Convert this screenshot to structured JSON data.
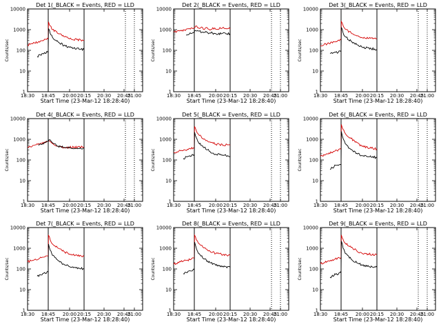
{
  "chart_data": [
    {
      "type": "line",
      "title": "Det 1(_BLACK = Events, RED = LLD",
      "xlabel": "Start Time (23-Mar-12 18:28:40)",
      "ylabel": "Counts/sec",
      "y_scale": "log",
      "ylim": [
        1,
        10000
      ],
      "xlim": [
        "18:30",
        "21:15"
      ],
      "x_ticks": [
        "18:30",
        "18:45",
        "20:00",
        "20:15",
        "20:30",
        "20:45",
        "21:00"
      ],
      "y_ticks": [
        "1",
        "10",
        "100",
        "1000",
        "10000"
      ],
      "grid": false,
      "solid_markers": [
        "18:45",
        "20:15"
      ],
      "dotted_markers": [
        "20:47",
        "21:00"
      ],
      "series": [
        {
          "color": "#d40000",
          "x": [
            "18:30",
            "18:35",
            "18:40",
            "18:45",
            "18:46",
            "18:52",
            "19:00",
            "19:20",
            "19:40",
            "20:00",
            "20:15"
          ],
          "values": [
            180,
            230,
            290,
            350,
            2400,
            1500,
            1000,
            650,
            460,
            360,
            300
          ]
        },
        {
          "color": "#000000",
          "x": [
            "18:37",
            "18:41",
            "18:43",
            "18:44",
            "18:45",
            "18:46",
            "18:52",
            "19:00",
            "19:20",
            "19:40",
            "20:00",
            "20:15"
          ],
          "values": [
            50,
            70,
            70,
            90,
            90,
            1100,
            650,
            420,
            250,
            170,
            140,
            110
          ]
        }
      ]
    },
    {
      "type": "line",
      "title": "Det 2(_BLACK = Events, RED = LLD",
      "xlabel": "Start Time (23-Mar-12 18:28:40)",
      "ylabel": "Counts/sec",
      "y_scale": "log",
      "ylim": [
        1,
        10000
      ],
      "xlim": [
        "18:30",
        "21:15"
      ],
      "x_ticks": [
        "18:30",
        "18:45",
        "20:00",
        "20:15",
        "20:30",
        "20:45",
        "21:00"
      ],
      "y_ticks": [
        "1",
        "10",
        "100",
        "1000",
        "10000"
      ],
      "grid": false,
      "solid_markers": [
        "18:45",
        "20:15"
      ],
      "dotted_markers": [
        "20:47",
        "21:00"
      ],
      "series": [
        {
          "color": "#d40000",
          "x": [
            "18:30",
            "18:38",
            "18:45",
            "18:50",
            "19:00",
            "19:10",
            "19:20",
            "19:30",
            "19:40",
            "19:50",
            "20:00",
            "20:08",
            "20:15"
          ],
          "values": [
            750,
            950,
            1250,
            1500,
            1200,
            1350,
            1000,
            1250,
            950,
            1250,
            1050,
            1300,
            1100
          ]
        },
        {
          "color": "#000000",
          "x": [
            "18:39",
            "18:42",
            "18:45",
            "18:50",
            "19:00",
            "19:20",
            "19:40",
            "20:00",
            "20:15"
          ],
          "values": [
            550,
            700,
            800,
            900,
            850,
            750,
            700,
            650,
            640
          ]
        }
      ]
    },
    {
      "type": "line",
      "title": "Det 3(_BLACK = Events, RED = LLD",
      "xlabel": "Start Time (23-Mar-12 18:28:40)",
      "ylabel": "Counts/sec",
      "y_scale": "log",
      "ylim": [
        1,
        10000
      ],
      "xlim": [
        "18:30",
        "21:15"
      ],
      "x_ticks": [
        "18:30",
        "18:45",
        "20:00",
        "20:15",
        "20:30",
        "20:45",
        "21:00"
      ],
      "y_ticks": [
        "1",
        "10",
        "100",
        "1000",
        "10000"
      ],
      "grid": false,
      "solid_markers": [
        "18:45",
        "20:15"
      ],
      "dotted_markers": [
        "20:47",
        "21:00"
      ],
      "series": [
        {
          "color": "#d40000",
          "x": [
            "18:30",
            "18:35",
            "18:40",
            "18:45",
            "18:46",
            "18:52",
            "19:00",
            "19:20",
            "19:40",
            "20:00",
            "20:15"
          ],
          "values": [
            170,
            210,
            260,
            320,
            2500,
            1600,
            1050,
            700,
            500,
            400,
            370
          ]
        },
        {
          "color": "#000000",
          "x": [
            "18:37",
            "18:41",
            "18:43",
            "18:44",
            "18:45",
            "18:46",
            "18:52",
            "19:00",
            "19:20",
            "19:40",
            "20:00",
            "20:15"
          ],
          "values": [
            70,
            80,
            80,
            95,
            95,
            1300,
            700,
            450,
            280,
            190,
            140,
            110
          ]
        }
      ]
    },
    {
      "type": "line",
      "title": "Det 4(_BLACK = Events, RED = LLD",
      "xlabel": "Start Time (23-Mar-12 18:28:40)",
      "ylabel": "Counts/sec",
      "y_scale": "log",
      "ylim": [
        1,
        10000
      ],
      "xlim": [
        "18:30",
        "21:15"
      ],
      "x_ticks": [
        "18:30",
        "18:45",
        "20:00",
        "20:15",
        "20:30",
        "20:45",
        "21:00"
      ],
      "y_ticks": [
        "1",
        "10",
        "100",
        "1000",
        "10000"
      ],
      "grid": false,
      "solid_markers": [
        "18:45",
        "20:15"
      ],
      "dotted_markers": [
        "20:47",
        "21:00"
      ],
      "series": [
        {
          "color": "#d40000",
          "x": [
            "18:30",
            "18:35",
            "18:40",
            "18:45",
            "18:48",
            "18:55",
            "19:05",
            "19:20",
            "19:40",
            "20:00",
            "20:15"
          ],
          "values": [
            420,
            520,
            650,
            800,
            850,
            720,
            560,
            450,
            400,
            410,
            420
          ]
        },
        {
          "color": "#000000",
          "x": [
            "18:38",
            "18:41",
            "18:45",
            "18:48",
            "18:55",
            "19:05",
            "19:20",
            "19:40",
            "20:00",
            "20:15"
          ],
          "values": [
            500,
            620,
            780,
            950,
            820,
            620,
            470,
            400,
            380,
            380
          ]
        }
      ]
    },
    {
      "type": "line",
      "title": "Det 5(_BLACK = Events, RED = LLD",
      "xlabel": "Start Time (23-Mar-12 18:28:40)",
      "ylabel": "Counts/sec",
      "y_scale": "log",
      "ylim": [
        1,
        10000
      ],
      "xlim": [
        "18:30",
        "21:15"
      ],
      "x_ticks": [
        "18:30",
        "18:45",
        "20:00",
        "20:15",
        "20:30",
        "20:45",
        "21:00"
      ],
      "y_ticks": [
        "1",
        "10",
        "100",
        "1000",
        "10000"
      ],
      "grid": false,
      "solid_markers": [
        "18:45",
        "20:15"
      ],
      "dotted_markers": [
        "20:47",
        "21:00"
      ],
      "series": [
        {
          "color": "#d40000",
          "x": [
            "18:30",
            "18:35",
            "18:40",
            "18:45",
            "18:46",
            "18:52",
            "19:00",
            "19:20",
            "19:40",
            "20:00",
            "20:15"
          ],
          "values": [
            230,
            280,
            330,
            380,
            4200,
            2600,
            1700,
            1050,
            750,
            580,
            520
          ]
        },
        {
          "color": "#000000",
          "x": [
            "18:37",
            "18:41",
            "18:43",
            "18:44",
            "18:45",
            "18:46",
            "18:52",
            "19:00",
            "19:20",
            "19:40",
            "20:00",
            "20:15"
          ],
          "values": [
            120,
            150,
            160,
            180,
            180,
            2200,
            1200,
            700,
            400,
            260,
            190,
            150
          ]
        }
      ]
    },
    {
      "type": "line",
      "title": "Det 6(_BLACK = Events, RED = LLD",
      "xlabel": "Start Time (23-Mar-12 18:28:40)",
      "ylabel": "Counts/sec",
      "y_scale": "log",
      "ylim": [
        1,
        10000
      ],
      "xlim": [
        "18:30",
        "21:15"
      ],
      "x_ticks": [
        "18:30",
        "18:45",
        "20:00",
        "20:15",
        "20:30",
        "20:45",
        "21:00"
      ],
      "y_ticks": [
        "1",
        "10",
        "100",
        "1000",
        "10000"
      ],
      "grid": false,
      "solid_markers": [
        "18:45",
        "20:15"
      ],
      "dotted_markers": [
        "20:47",
        "21:00"
      ],
      "series": [
        {
          "color": "#d40000",
          "x": [
            "18:30",
            "18:35",
            "18:40",
            "18:45",
            "18:46",
            "18:52",
            "19:00",
            "19:20",
            "19:40",
            "20:00",
            "20:15"
          ],
          "values": [
            150,
            200,
            260,
            330,
            5200,
            3000,
            1900,
            1100,
            700,
            450,
            340
          ]
        },
        {
          "color": "#000000",
          "x": [
            "18:37",
            "18:41",
            "18:43",
            "18:44",
            "18:45",
            "18:46",
            "18:52",
            "19:00",
            "19:20",
            "19:40",
            "20:00",
            "20:15"
          ],
          "values": [
            35,
            55,
            55,
            60,
            60,
            2400,
            1100,
            600,
            320,
            210,
            160,
            130
          ]
        }
      ]
    },
    {
      "type": "line",
      "title": "Det 7(_BLACK = Events, RED = LLD",
      "xlabel": "Start Time (23-Mar-12 18:28:40)",
      "ylabel": "Counts/sec",
      "y_scale": "log",
      "ylim": [
        1,
        10000
      ],
      "xlim": [
        "18:30",
        "21:15"
      ],
      "x_ticks": [
        "18:30",
        "18:45",
        "20:00",
        "20:15",
        "20:30",
        "20:45",
        "21:00"
      ],
      "y_ticks": [
        "1",
        "10",
        "100",
        "1000",
        "10000"
      ],
      "grid": false,
      "solid_markers": [
        "18:45",
        "20:15"
      ],
      "dotted_markers": [],
      "series": [
        {
          "color": "#d40000",
          "x": [
            "18:30",
            "18:35",
            "18:40",
            "18:45",
            "18:46",
            "18:52",
            "19:00",
            "19:20",
            "19:40",
            "20:00",
            "20:15"
          ],
          "values": [
            220,
            280,
            350,
            420,
            4200,
            2500,
            1600,
            1000,
            700,
            520,
            420
          ]
        },
        {
          "color": "#000000",
          "x": [
            "18:37",
            "18:41",
            "18:43",
            "18:44",
            "18:45",
            "18:46",
            "18:52",
            "19:00",
            "19:20",
            "19:40",
            "20:00",
            "20:15"
          ],
          "values": [
            45,
            60,
            60,
            70,
            70,
            1600,
            800,
            450,
            250,
            170,
            130,
            100
          ]
        }
      ]
    },
    {
      "type": "line",
      "title": "Det 8(_BLACK = Events, RED = LLD",
      "xlabel": "Start Time (23-Mar-12 18:28:40)",
      "ylabel": "Counts/sec",
      "y_scale": "log",
      "ylim": [
        1,
        10000
      ],
      "xlim": [
        "18:30",
        "21:15"
      ],
      "x_ticks": [
        "18:30",
        "18:45",
        "20:00",
        "20:15",
        "20:30",
        "20:45",
        "21:00"
      ],
      "y_ticks": [
        "1",
        "10",
        "100",
        "1000",
        "10000"
      ],
      "grid": false,
      "solid_markers": [
        "18:45",
        "20:15"
      ],
      "dotted_markers": [
        "20:47",
        "21:00"
      ],
      "series": [
        {
          "color": "#d40000",
          "x": [
            "18:30",
            "18:35",
            "18:40",
            "18:45",
            "18:46",
            "18:52",
            "19:00",
            "19:20",
            "19:40",
            "20:00",
            "20:15"
          ],
          "values": [
            170,
            220,
            270,
            330,
            4300,
            2600,
            1700,
            1050,
            720,
            550,
            460
          ]
        },
        {
          "color": "#000000",
          "x": [
            "18:37",
            "18:41",
            "18:43",
            "18:44",
            "18:45",
            "18:46",
            "18:52",
            "19:00",
            "19:20",
            "19:40",
            "20:00",
            "20:15"
          ],
          "values": [
            60,
            80,
            80,
            90,
            90,
            2000,
            1000,
            550,
            300,
            200,
            150,
            120
          ]
        }
      ]
    },
    {
      "type": "line",
      "title": "Det 9(_BLACK = Events, RED = LLD",
      "xlabel": "Start Time (23-Mar-12 18:28:40)",
      "ylabel": "Counts/sec",
      "y_scale": "log",
      "ylim": [
        1,
        10000
      ],
      "xlim": [
        "18:30",
        "21:15"
      ],
      "x_ticks": [
        "18:30",
        "18:45",
        "20:00",
        "20:15",
        "20:30",
        "20:45",
        "21:00"
      ],
      "y_ticks": [
        "1",
        "10",
        "100",
        "1000",
        "10000"
      ],
      "grid": false,
      "solid_markers": [
        "18:45",
        "20:15"
      ],
      "dotted_markers": [
        "20:47",
        "21:00"
      ],
      "series": [
        {
          "color": "#d40000",
          "x": [
            "18:30",
            "18:35",
            "18:40",
            "18:45",
            "18:46",
            "18:52",
            "19:00",
            "19:20",
            "19:40",
            "20:00",
            "20:15"
          ],
          "values": [
            180,
            230,
            290,
            360,
            4400,
            2700,
            1750,
            1100,
            750,
            560,
            470
          ]
        },
        {
          "color": "#000000",
          "x": [
            "18:37",
            "18:41",
            "18:43",
            "18:44",
            "18:45",
            "18:46",
            "18:52",
            "19:00",
            "19:20",
            "19:40",
            "20:00",
            "20:15"
          ],
          "values": [
            40,
            55,
            55,
            65,
            65,
            2200,
            1000,
            550,
            300,
            200,
            150,
            120
          ]
        }
      ]
    }
  ]
}
